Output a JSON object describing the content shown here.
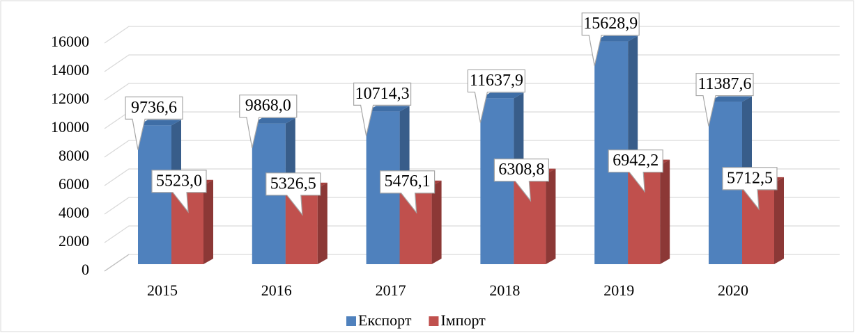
{
  "chart_data": {
    "type": "bar3d",
    "categories": [
      "2015",
      "2016",
      "2017",
      "2018",
      "2019",
      "2020"
    ],
    "series": [
      {
        "name": "Експорт",
        "color": "#4f81bd",
        "side": "#385d8a",
        "top": "#3f6ea6",
        "values": [
          9736.6,
          9868.0,
          10714.3,
          11637.9,
          15628.9,
          11387.6
        ],
        "value_labels": [
          "9736,6",
          "9868,0",
          "10714,3",
          "11637,9",
          "15628,9",
          "11387,6"
        ]
      },
      {
        "name": "Імпорт",
        "color": "#c0504d",
        "side": "#8c3836",
        "top": "#a6403d",
        "values": [
          5523.0,
          5326.5,
          5476.1,
          6308.8,
          6942.2,
          5712.5
        ],
        "value_labels": [
          "5523,0",
          "5326,5",
          "5476,1",
          "6308,8",
          "6942,2",
          "5712,5"
        ]
      }
    ],
    "ylim": [
      0,
      16000
    ],
    "yticks": [
      0,
      2000,
      4000,
      6000,
      8000,
      10000,
      12000,
      14000,
      16000
    ],
    "grid": true,
    "legend": "bottom"
  }
}
